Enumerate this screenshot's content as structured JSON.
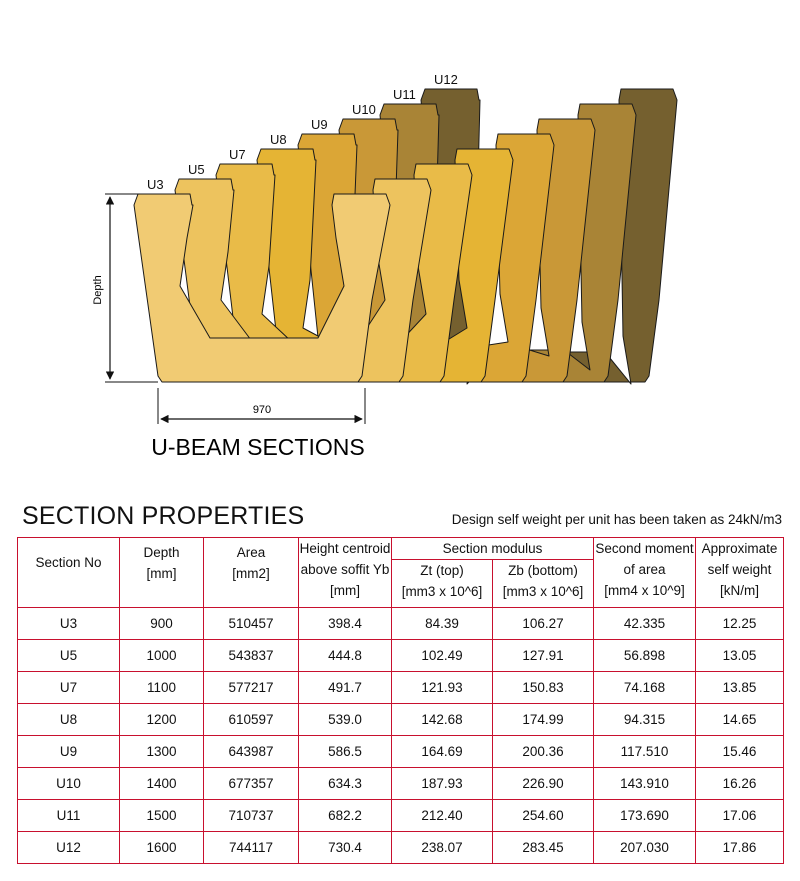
{
  "diagram": {
    "title": "U-BEAM SECTIONS",
    "depth_label": "Depth",
    "width_label": "970",
    "sections": [
      {
        "label": "U3",
        "color": "#f1cb73"
      },
      {
        "label": "U5",
        "color": "#edc35e"
      },
      {
        "label": "U7",
        "color": "#e9bb48"
      },
      {
        "label": "U8",
        "color": "#e5b434"
      },
      {
        "label": "U9",
        "color": "#dba636"
      },
      {
        "label": "U10",
        "color": "#c99837"
      },
      {
        "label": "U11",
        "color": "#a98436"
      },
      {
        "label": "U12",
        "color": "#75602f"
      }
    ]
  },
  "properties": {
    "title": "SECTION PROPERTIES",
    "note": "Design self weight per unit has been taken as 24kN/m3",
    "headers": {
      "section": "Section No",
      "depth": [
        "Depth",
        "[mm]"
      ],
      "area": [
        "Area",
        "[mm2]"
      ],
      "centroid": [
        "Height centroid",
        "above soffit Yb",
        "[mm]"
      ],
      "modulus": "Section modulus",
      "zt": [
        "Zt (top)",
        "[mm3 x 10^6]"
      ],
      "zb": [
        "Zb (bottom)",
        "[mm3 x 10^6]"
      ],
      "moment": [
        "Second moment",
        "of area",
        "[mm4 x 10^9]"
      ],
      "weight": [
        "Approximate",
        "self weight",
        "[kN/m]"
      ]
    },
    "rows": [
      {
        "section": "U3",
        "depth": "900",
        "area": "510457",
        "yb": "398.4",
        "zt": "84.39",
        "zb": "106.27",
        "i": "42.335",
        "w": "12.25"
      },
      {
        "section": "U5",
        "depth": "1000",
        "area": "543837",
        "yb": "444.8",
        "zt": "102.49",
        "zb": "127.91",
        "i": "56.898",
        "w": "13.05"
      },
      {
        "section": "U7",
        "depth": "1100",
        "area": "577217",
        "yb": "491.7",
        "zt": "121.93",
        "zb": "150.83",
        "i": "74.168",
        "w": "13.85"
      },
      {
        "section": "U8",
        "depth": "1200",
        "area": "610597",
        "yb": "539.0",
        "zt": "142.68",
        "zb": "174.99",
        "i": "94.315",
        "w": "14.65"
      },
      {
        "section": "U9",
        "depth": "1300",
        "area": "643987",
        "yb": "586.5",
        "zt": "164.69",
        "zb": "200.36",
        "i": "117.510",
        "w": "15.46"
      },
      {
        "section": "U10",
        "depth": "1400",
        "area": "677357",
        "yb": "634.3",
        "zt": "187.93",
        "zb": "226.90",
        "i": "143.910",
        "w": "16.26"
      },
      {
        "section": "U11",
        "depth": "1500",
        "area": "710737",
        "yb": "682.2",
        "zt": "212.40",
        "zb": "254.60",
        "i": "173.690",
        "w": "17.06"
      },
      {
        "section": "U12",
        "depth": "1600",
        "area": "744117",
        "yb": "730.4",
        "zt": "238.07",
        "zb": "283.45",
        "i": "207.030",
        "w": "17.86"
      }
    ]
  }
}
